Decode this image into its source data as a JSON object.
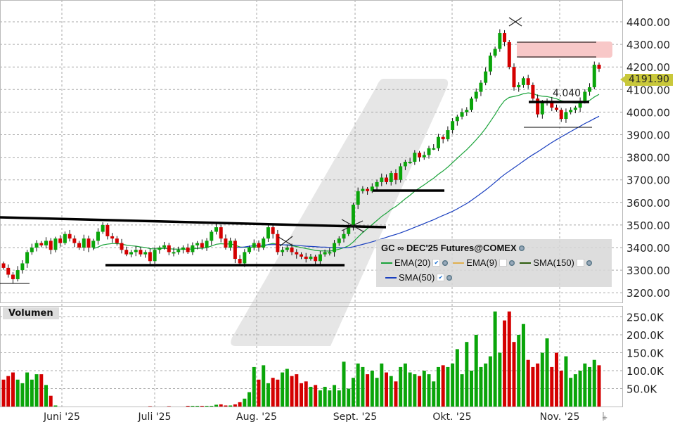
{
  "chart_data": {
    "type": "candlestick",
    "title": "GC ∞ DEC'25 Futures@COMEX",
    "y_ticks": [
      "4400.00",
      "4300.00",
      "4200.00",
      "4100.00",
      "4000.00",
      "3900.00",
      "3800.00",
      "3700.00",
      "3600.00",
      "3500.00",
      "3400.00",
      "3300.00",
      "3200.00"
    ],
    "ylim": [
      3200,
      4400
    ],
    "x_ticks": [
      "Juni '25",
      "Juli '25",
      "Aug. '25",
      "Sept. '25",
      "Okt. '25",
      "Nov. '25"
    ],
    "last_price": "4191.90",
    "annotation_label": "4.040",
    "grid": true,
    "close": [
      3310,
      3280,
      3260,
      3300,
      3330,
      3380,
      3400,
      3420,
      3410,
      3430,
      3390,
      3440,
      3420,
      3460,
      3440,
      3420,
      3400,
      3440,
      3400,
      3430,
      3470,
      3500,
      3450,
      3440,
      3420,
      3390,
      3370,
      3380,
      3390,
      3370,
      3380,
      3340,
      3390,
      3400,
      3410,
      3380,
      3380,
      3390,
      3400,
      3380,
      3410,
      3420,
      3400,
      3430,
      3470,
      3490,
      3440,
      3400,
      3430,
      3350,
      3330,
      3380,
      3400,
      3420,
      3400,
      3440,
      3490,
      3460,
      3380,
      3390,
      3400,
      3380,
      3370,
      3360,
      3350,
      3360,
      3340,
      3370,
      3380,
      3380,
      3420,
      3440,
      3460,
      3490,
      3590,
      3650,
      3660,
      3650,
      3670,
      3690,
      3710,
      3690,
      3730,
      3700,
      3760,
      3780,
      3780,
      3820,
      3800,
      3810,
      3840,
      3840,
      3890,
      3880,
      3920,
      3960,
      3980,
      4000,
      4010,
      4060,
      4090,
      4130,
      4180,
      4250,
      4280,
      4350,
      4310,
      4200,
      4110,
      4120,
      4150,
      4120,
      4060,
      3990,
      4040,
      4050,
      4020,
      4010,
      3970,
      4000,
      4010,
      4020,
      4050,
      4090,
      4110,
      4210,
      4192
    ],
    "indicators": [
      {
        "name": "EMA(20)",
        "color": "#1aa33a",
        "checked": true
      },
      {
        "name": "EMA(9)",
        "color": "#e0b050",
        "checked": false
      },
      {
        "name": "SMA(150)",
        "color": "#2e5d0e",
        "checked": false
      },
      {
        "name": "SMA(50)",
        "color": "#1a3fbf",
        "checked": true
      }
    ],
    "volume": {
      "label": "Volumen",
      "y_ticks": [
        "250.0K",
        "200.0K",
        "150.0K",
        "100.0K",
        "50.0K"
      ],
      "ylim": [
        0,
        270
      ],
      "unit": "K",
      "values": [
        75,
        85,
        95,
        75,
        65,
        95,
        75,
        90,
        90,
        60,
        30,
        3,
        0,
        0,
        0,
        0,
        0,
        0,
        0,
        0,
        0,
        0,
        0,
        0,
        0,
        0,
        0,
        0,
        0,
        0,
        0,
        1,
        0,
        0,
        0,
        1,
        0,
        0,
        0,
        2,
        2,
        2,
        2,
        2,
        2,
        5,
        6,
        3,
        3,
        6,
        12,
        22,
        40,
        110,
        75,
        115,
        65,
        80,
        75,
        95,
        105,
        85,
        90,
        65,
        70,
        55,
        60,
        45,
        55,
        45,
        60,
        45,
        125,
        50,
        80,
        120,
        110,
        90,
        100,
        80,
        120,
        95,
        85,
        70,
        110,
        120,
        95,
        90,
        85,
        100,
        90,
        70,
        110,
        115,
        110,
        120,
        160,
        90,
        180,
        100,
        200,
        110,
        120,
        140,
        265,
        150,
        240,
        265,
        180,
        200,
        230,
        130,
        110,
        120,
        150,
        190,
        110,
        150,
        100,
        140,
        80,
        90,
        100,
        120,
        110,
        130,
        115
      ]
    },
    "colors": {
      "up": "#0aa50a",
      "down": "#d40000",
      "price_tag": "#c9c83b",
      "resistance_zone": "#f8c8c8"
    }
  }
}
